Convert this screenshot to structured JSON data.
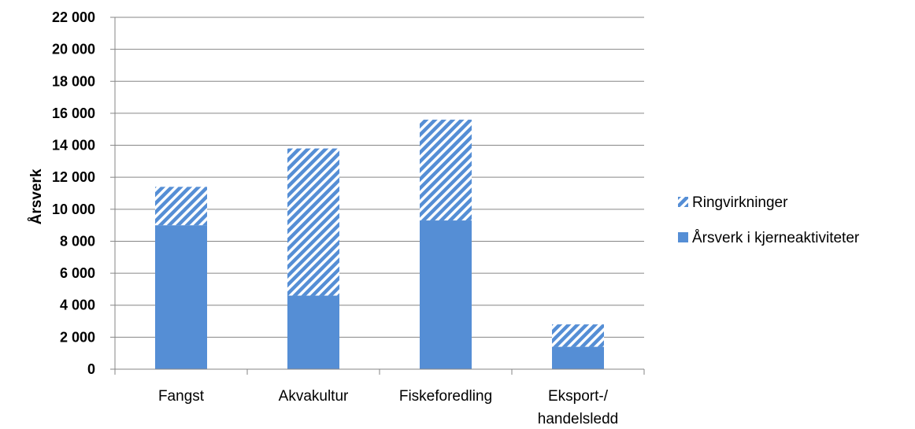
{
  "chart_data": {
    "type": "bar",
    "stacked": true,
    "categories": [
      "Fangst",
      "Akvakultur",
      "Fiskeforedling",
      "Eksport-/ handelsledd"
    ],
    "series": [
      {
        "name": "Årsverk i kjerneaktiviteter",
        "values": [
          9000,
          4600,
          9300,
          1400
        ],
        "color": "#558ED5",
        "pattern": "solid"
      },
      {
        "name": "Ringvirkninger",
        "values": [
          2400,
          9200,
          6300,
          1400
        ],
        "color": "#558ED5",
        "pattern": "diagonal-stripes"
      }
    ],
    "title": "",
    "xlabel": "",
    "ylabel": "Årsverk",
    "ylim": [
      0,
      22000
    ],
    "yticks": [
      0,
      2000,
      4000,
      6000,
      8000,
      10000,
      12000,
      14000,
      16000,
      18000,
      20000,
      22000
    ],
    "ytick_labels": [
      "0",
      "2 000",
      "4 000",
      "6 000",
      "8 000",
      "10 000",
      "12 000",
      "14 000",
      "16 000",
      "18 000",
      "20 000",
      "22 000"
    ],
    "grid": "horizontal",
    "legend_position": "right",
    "legend_entries": [
      "Ringvirkninger",
      "Årsverk i kjerneaktiviteter"
    ]
  }
}
